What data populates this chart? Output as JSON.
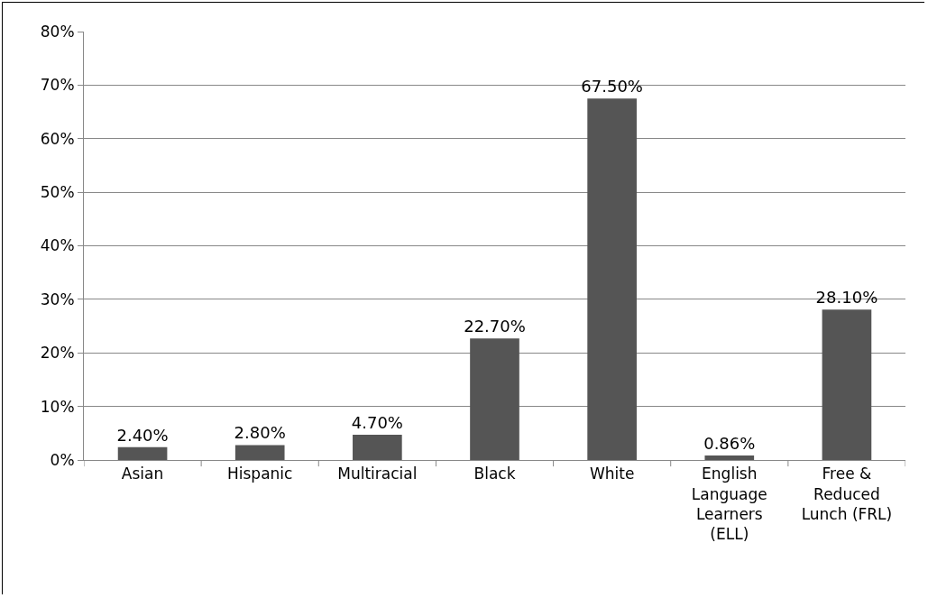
{
  "chart_data": {
    "type": "bar",
    "categories": [
      "Asian",
      "Hispanic",
      "Multiracial",
      "Black",
      "White",
      "English Language Learners (ELL)",
      "Free & Reduced Lunch (FRL)"
    ],
    "values": [
      2.4,
      2.8,
      4.7,
      22.7,
      67.5,
      0.86,
      28.1
    ],
    "value_labels": [
      "2.40%",
      "2.80%",
      "4.70%",
      "22.70%",
      "67.50%",
      "0.86%",
      "28.10%"
    ],
    "color": "#555555",
    "ylim": [
      0,
      80
    ],
    "yticks": [
      {
        "value": 0,
        "label": "0%"
      },
      {
        "value": 10,
        "label": "10%"
      },
      {
        "value": 20,
        "label": "20%"
      },
      {
        "value": 30,
        "label": "30%"
      },
      {
        "value": 40,
        "label": "40%"
      },
      {
        "value": 50,
        "label": "50%"
      },
      {
        "value": 60,
        "label": "60%"
      },
      {
        "value": 70,
        "label": "70%"
      },
      {
        "value": 80,
        "label": "80%"
      }
    ],
    "grid": "y"
  }
}
